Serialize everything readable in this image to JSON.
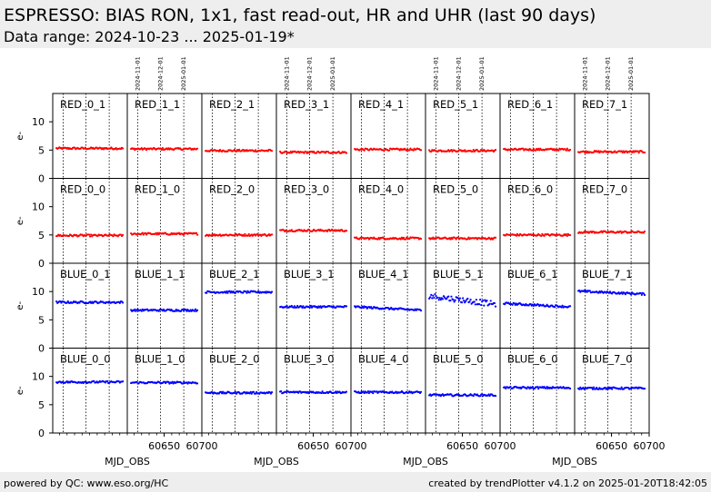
{
  "header": {
    "title": "ESPRESSO: BIAS RON, 1x1, fast read-out, HR and UHR (last 90 days)",
    "subtitle": "Data range: 2024-10-23 ... 2025-01-19*"
  },
  "footer": {
    "left": "powered by QC: www.eso.org/HC",
    "right": "created by trendPlotter v4.1.2 on 2025-01-20T18:42:05"
  },
  "chart_data": {
    "type": "scatter",
    "layout": "small-multiples 4 rows x 8 columns, shared axes",
    "xlabel": "MJD_OBS",
    "ylabel": "e-",
    "xlim": [
      60601,
      60700
    ],
    "ylim": [
      0,
      15
    ],
    "x_tick_labels": [
      "60650",
      "60700"
    ],
    "y_tick_labels": [
      "0",
      "5",
      "10"
    ],
    "date_markers": [
      {
        "label": "2024-11-01",
        "mjd": 60615
      },
      {
        "label": "2024-12-01",
        "mjd": 60645
      },
      {
        "label": "2025-01-01",
        "mjd": 60676
      }
    ],
    "data_range": {
      "start_mjd": 60606,
      "end_mjd": 60694
    },
    "grid": false,
    "colors": {
      "RED": "#ff0000",
      "BLUE": "#0000ff"
    },
    "panels": [
      [
        {
          "label": "RED_0_1",
          "color": "RED",
          "level": 5.3
        },
        {
          "label": "RED_1_1",
          "color": "RED",
          "level": 5.2
        },
        {
          "label": "RED_2_1",
          "color": "RED",
          "level": 4.9
        },
        {
          "label": "RED_3_1",
          "color": "RED",
          "level": 4.6
        },
        {
          "label": "RED_4_1",
          "color": "RED",
          "level": 5.1
        },
        {
          "label": "RED_5_1",
          "color": "RED",
          "level": 4.9
        },
        {
          "label": "RED_6_1",
          "color": "RED",
          "level": 5.1
        },
        {
          "label": "RED_7_1",
          "color": "RED",
          "level": 4.7
        }
      ],
      [
        {
          "label": "RED_0_0",
          "color": "RED",
          "level": 4.9
        },
        {
          "label": "RED_1_0",
          "color": "RED",
          "level": 5.2
        },
        {
          "label": "RED_2_0",
          "color": "RED",
          "level": 5.0
        },
        {
          "label": "RED_3_0",
          "color": "RED",
          "level": 5.8
        },
        {
          "label": "RED_4_0",
          "color": "RED",
          "level": 4.4
        },
        {
          "label": "RED_5_0",
          "color": "RED",
          "level": 4.4
        },
        {
          "label": "RED_6_0",
          "color": "RED",
          "level": 5.0
        },
        {
          "label": "RED_7_0",
          "color": "RED",
          "level": 5.5
        }
      ],
      [
        {
          "label": "BLUE_0_1",
          "color": "BLUE",
          "level": 8.1
        },
        {
          "label": "BLUE_1_1",
          "color": "BLUE",
          "level": 6.7
        },
        {
          "label": "BLUE_2_1",
          "color": "BLUE",
          "level": 9.9
        },
        {
          "label": "BLUE_3_1",
          "color": "BLUE",
          "level": 7.3
        },
        {
          "label": "BLUE_4_1",
          "color": "BLUE",
          "level": 7.0,
          "trend": -0.6
        },
        {
          "label": "BLUE_5_1",
          "color": "BLUE",
          "level": 8.5,
          "trend": -1.5
        },
        {
          "label": "BLUE_6_1",
          "color": "BLUE",
          "level": 7.6,
          "trend": -0.6
        },
        {
          "label": "BLUE_7_1",
          "color": "BLUE",
          "level": 9.8,
          "trend": -0.5
        }
      ],
      [
        {
          "label": "BLUE_0_0",
          "color": "BLUE",
          "level": 9.0
        },
        {
          "label": "BLUE_1_0",
          "color": "BLUE",
          "level": 8.9
        },
        {
          "label": "BLUE_2_0",
          "color": "BLUE",
          "level": 7.1
        },
        {
          "label": "BLUE_3_0",
          "color": "BLUE",
          "level": 7.2
        },
        {
          "label": "BLUE_4_0",
          "color": "BLUE",
          "level": 7.2
        },
        {
          "label": "BLUE_5_0",
          "color": "BLUE",
          "level": 6.7
        },
        {
          "label": "BLUE_6_0",
          "color": "BLUE",
          "level": 8.0
        },
        {
          "label": "BLUE_7_0",
          "color": "BLUE",
          "level": 7.9
        }
      ]
    ]
  }
}
